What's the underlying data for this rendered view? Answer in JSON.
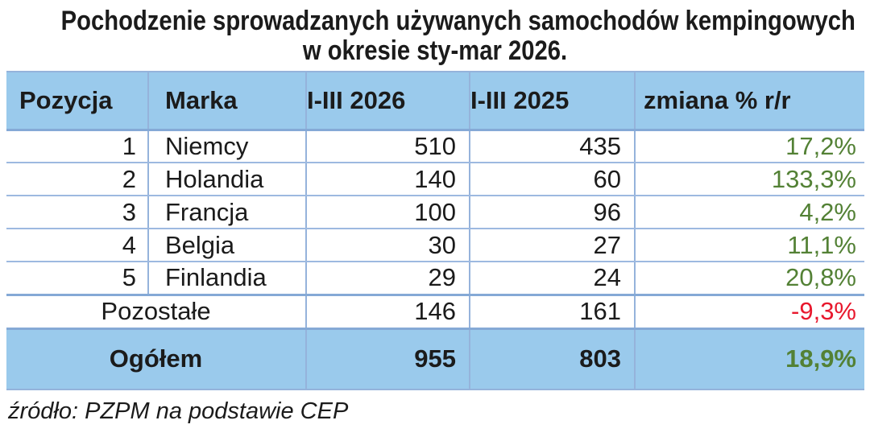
{
  "title": {
    "line1": "Pochodzenie sprowadzanych używanych samochodów kempingowych",
    "line2": "w okresie sty-mar 2026."
  },
  "colors": {
    "header_fill": "#9acaec",
    "border_thin": "#95b3db",
    "border_thick": "#85a9d6",
    "positive_green": "#538135",
    "negative_red": "#e8182d",
    "text": "#1b1b1b"
  },
  "table": {
    "headers": {
      "pozycja": "Pozycja",
      "marka": "Marka",
      "y2026": "I-III 2026",
      "y2025": "I-III 2025",
      "change": "zmiana % r/r"
    },
    "rows": [
      {
        "pozycja": "1",
        "marka": "Niemcy",
        "y2026": "510",
        "y2025": "435",
        "change": "17,2%",
        "change_color": "#538135"
      },
      {
        "pozycja": "2",
        "marka": "Holandia",
        "y2026": "140",
        "y2025": "60",
        "change": "133,3%",
        "change_color": "#538135"
      },
      {
        "pozycja": "3",
        "marka": "Francja",
        "y2026": "100",
        "y2025": "96",
        "change": "4,2%",
        "change_color": "#538135"
      },
      {
        "pozycja": "4",
        "marka": "Belgia",
        "y2026": "30",
        "y2025": "27",
        "change": "11,1%",
        "change_color": "#538135"
      },
      {
        "pozycja": "5",
        "marka": "Finlandia",
        "y2026": "29",
        "y2025": "24",
        "change": "20,8%",
        "change_color": "#538135"
      }
    ],
    "others_row": {
      "label": "Pozostałe",
      "y2026": "146",
      "y2025": "161",
      "change": "-9,3%",
      "change_color": "#e8182d"
    },
    "total_row": {
      "label": "Ogółem",
      "y2026": "955",
      "y2025": "803",
      "change": "18,9%",
      "change_color": "#538135"
    }
  },
  "source": "źródło: PZPM na podstawie CEP",
  "chart_data": {
    "type": "table",
    "title": "Pochodzenie sprowadzanych używanych samochodów kempingowych w okresie sty-mar 2026.",
    "columns": [
      "Pozycja",
      "Marka",
      "I-III 2026",
      "I-III 2025",
      "zmiana % r/r"
    ],
    "rows": [
      [
        1,
        "Niemcy",
        510,
        435,
        "17,2%"
      ],
      [
        2,
        "Holandia",
        140,
        60,
        "133,3%"
      ],
      [
        3,
        "Francja",
        100,
        96,
        "4,2%"
      ],
      [
        4,
        "Belgia",
        30,
        27,
        "11,1%"
      ],
      [
        5,
        "Finlandia",
        29,
        24,
        "20,8%"
      ],
      [
        null,
        "Pozostałe",
        146,
        161,
        "-9,3%"
      ],
      [
        null,
        "Ogółem",
        955,
        803,
        "18,9%"
      ]
    ],
    "notes": "change column green when positive, red when negative; header and total rows have light blue fill",
    "source": "źródło: PZPM na podstawie CEP"
  }
}
